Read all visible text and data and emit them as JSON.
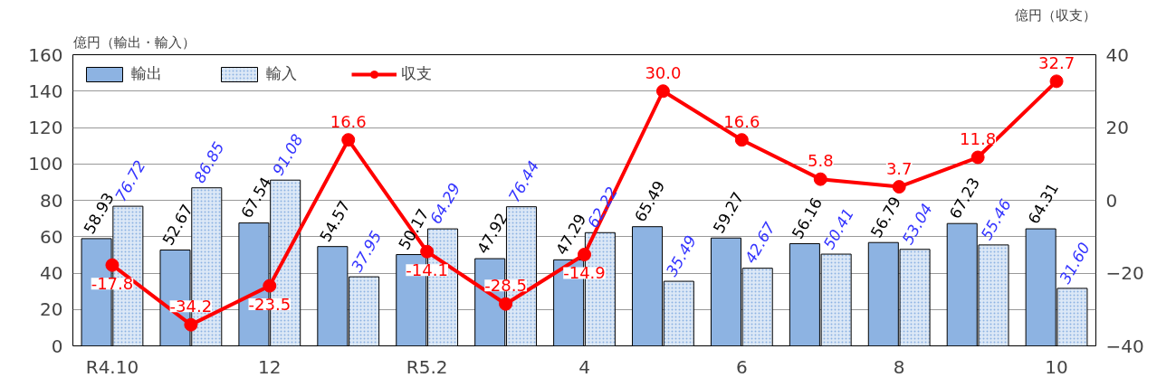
{
  "chart_data": {
    "type": "bar",
    "ylabel": "億円（輸出・輸入）",
    "y2label": "億円（収支）",
    "categories": [
      "R4.10",
      null,
      "12",
      null,
      "R5.2",
      null,
      "4",
      null,
      "6",
      null,
      "8",
      null,
      "10"
    ],
    "series": [
      {
        "name": "輸出",
        "color": "#8db3e2",
        "values": [
          58.93,
          52.67,
          67.54,
          54.57,
          50.17,
          47.92,
          47.29,
          65.49,
          59.27,
          56.16,
          56.79,
          67.23,
          64.31
        ],
        "value_labels": [
          "58.93",
          "52.67",
          "67.54",
          "54.57",
          "50.17",
          "47.92",
          "47.29",
          "65.49",
          "59.27",
          "56.16",
          "56.79",
          "67.23",
          "64.31"
        ]
      },
      {
        "name": "輸入",
        "color": "#dce8f6",
        "values": [
          76.72,
          86.85,
          91.08,
          37.95,
          64.29,
          76.44,
          62.22,
          35.49,
          42.67,
          50.41,
          53.04,
          55.46,
          31.6
        ],
        "value_labels": [
          "76.72",
          "86.85",
          "91.08",
          "37.95",
          "64.29",
          "76.44",
          "62.22",
          "35.49",
          "42.67",
          "50.41",
          "53.04",
          "55.46",
          "31.60"
        ]
      },
      {
        "name": "収支",
        "type": "line",
        "axis": "y2",
        "color": "#ff0000",
        "values": [
          -17.8,
          -34.2,
          -23.5,
          16.6,
          -14.1,
          -28.5,
          -14.9,
          30.0,
          16.6,
          5.8,
          3.7,
          11.8,
          32.7
        ],
        "value_labels": [
          "-17.8",
          "-34.2",
          "-23.5",
          "16.6",
          "-14.1",
          "-28.5",
          "-14.9",
          "30.0",
          "16.6",
          "5.8",
          "3.7",
          "11.8",
          "32.7"
        ]
      }
    ],
    "ylim": [
      0,
      160
    ],
    "yticks": [
      0,
      20,
      40,
      60,
      80,
      100,
      120,
      140,
      160
    ],
    "y2lim": [
      -40,
      40
    ],
    "y2ticks": [
      -40,
      -20,
      0,
      20,
      40
    ],
    "grid": "y",
    "legend": "top left",
    "marker": "circle",
    "line_style": "solid"
  }
}
